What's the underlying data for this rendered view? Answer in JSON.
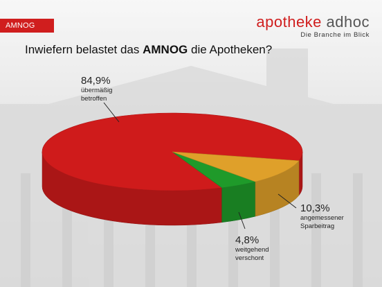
{
  "tag": "AMNOG",
  "brand": {
    "name_part1": "apotheke",
    "name_part2": "adhoc",
    "slogan": "Die Branche im Blick"
  },
  "question": {
    "prefix": "Inwiefern belastet das ",
    "bold": "AMNOG",
    "suffix": " die Apotheken?"
  },
  "colors": {
    "red": "#cf1b1b",
    "green": "#1f9a2a",
    "gold": "#dfa02a",
    "accent": "#d01e1e"
  },
  "chart_data": {
    "type": "pie",
    "title": "Inwiefern belastet das AMNOG die Apotheken?",
    "slices": [
      {
        "label_pct": "84,9%",
        "label_line1": "übermäßig",
        "label_line2": "betroffen",
        "value": 84.9,
        "color": "#cf1b1b"
      },
      {
        "label_pct": "4,8%",
        "label_line1": "weitgehend",
        "label_line2": "verschont",
        "value": 4.8,
        "color": "#1f9a2a"
      },
      {
        "label_pct": "10,3%",
        "label_line1": "angemessener",
        "label_line2": "Sparbeitrag",
        "value": 10.3,
        "color": "#dfa02a"
      }
    ]
  }
}
